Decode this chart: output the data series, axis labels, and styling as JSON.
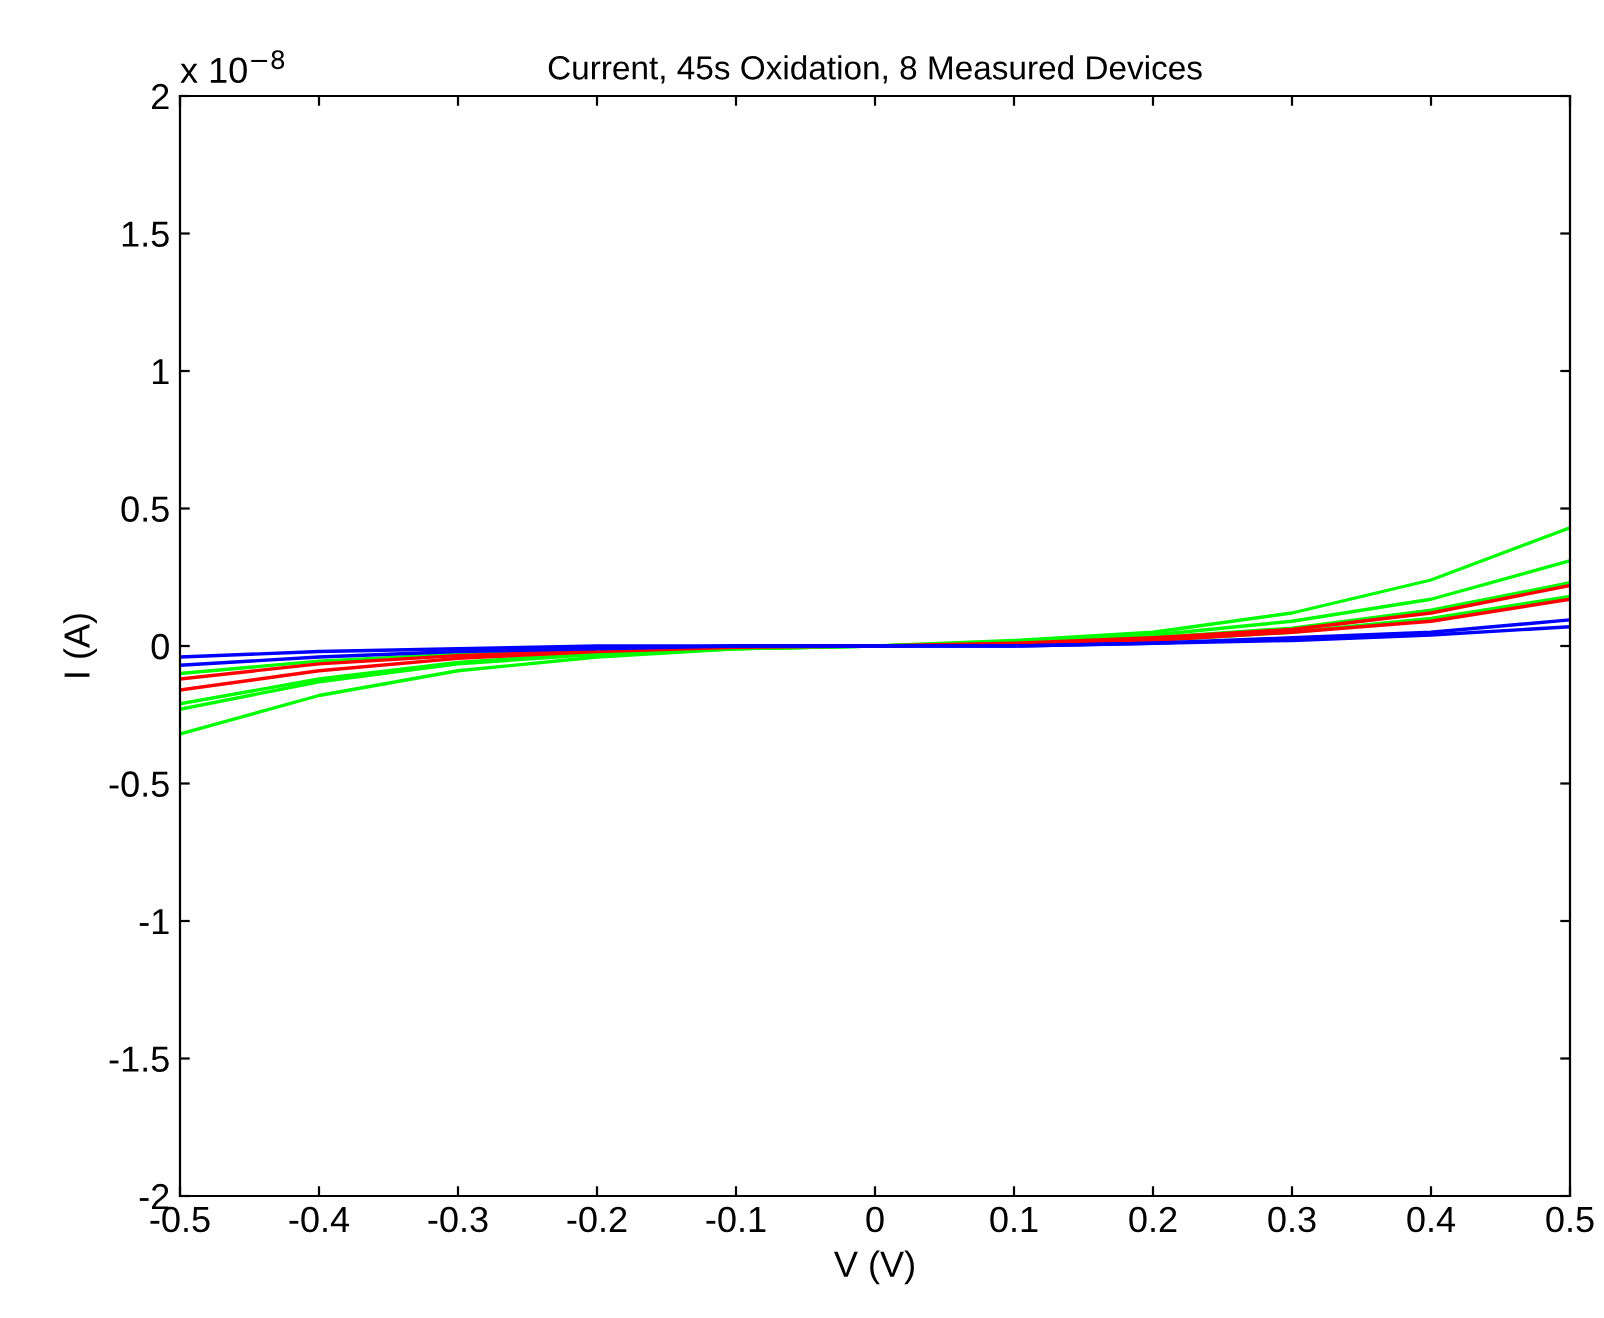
{
  "chart_data": {
    "type": "line",
    "title": "Current, 45s Oxidation, 8 Measured Devices",
    "xlabel": "V (V)",
    "ylabel": "I (A)",
    "annotations": [
      "x 10$^{−8}$"
    ],
    "x": [
      -0.5,
      -0.4,
      -0.3,
      -0.2,
      -0.1,
      0,
      0.1,
      0.2,
      0.3,
      0.4,
      0.5
    ],
    "series": [
      {
        "color": "#00ff00",
        "values": [
          -0.32,
          -0.18,
          -0.09,
          -0.04,
          -0.01,
          0,
          0.02,
          0.05,
          0.12,
          0.24,
          0.43
        ]
      },
      {
        "color": "#00ff00",
        "values": [
          -0.23,
          -0.13,
          -0.065,
          -0.03,
          -0.01,
          0,
          0.01,
          0.04,
          0.09,
          0.17,
          0.31
        ]
      },
      {
        "color": "#00ff00",
        "values": [
          -0.21,
          -0.12,
          -0.06,
          -0.025,
          -0.01,
          0,
          0.01,
          0.03,
          0.065,
          0.13,
          0.23
        ]
      },
      {
        "color": "#00ff00",
        "values": [
          -0.1,
          -0.055,
          -0.03,
          -0.01,
          0,
          0,
          0.01,
          0.02,
          0.05,
          0.1,
          0.18
        ]
      },
      {
        "color": "#ff0000",
        "values": [
          -0.16,
          -0.09,
          -0.045,
          -0.02,
          -0.005,
          0,
          0.01,
          0.03,
          0.06,
          0.12,
          0.22
        ]
      },
      {
        "color": "#ff0000",
        "values": [
          -0.12,
          -0.065,
          -0.035,
          -0.015,
          0,
          0,
          0.005,
          0.02,
          0.05,
          0.09,
          0.17
        ]
      },
      {
        "color": "#0000ff",
        "values": [
          -0.07,
          -0.04,
          -0.02,
          -0.01,
          0,
          0,
          0,
          0.01,
          0.03,
          0.05,
          0.095
        ]
      },
      {
        "color": "#0000ff",
        "values": [
          -0.04,
          -0.02,
          -0.01,
          0,
          0,
          0,
          0,
          0.01,
          0.02,
          0.04,
          0.07
        ]
      }
    ],
    "xlim": [
      -0.5,
      0.5
    ],
    "xticks": [
      -0.5,
      -0.4,
      -0.3,
      -0.2,
      -0.1,
      0,
      0.1,
      0.2,
      0.3,
      0.4,
      0.5
    ],
    "ylim": [
      -2,
      2
    ],
    "yticks": [
      -2,
      -1.5,
      -1,
      -0.5,
      0,
      0.5,
      1,
      1.5,
      2
    ],
    "grid": false,
    "legend": false
  }
}
